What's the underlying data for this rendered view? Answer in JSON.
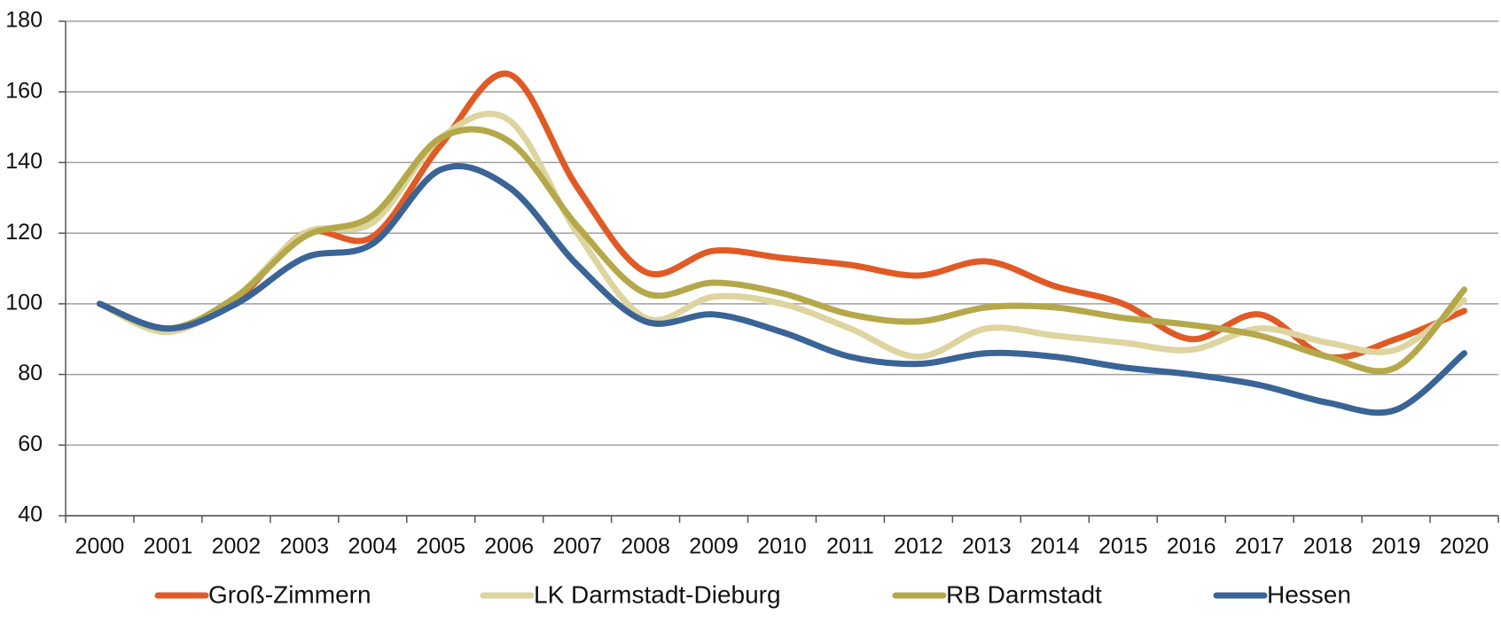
{
  "chart_data": {
    "type": "line",
    "categories": [
      "2000",
      "2001",
      "2002",
      "2003",
      "2004",
      "2005",
      "2006",
      "2007",
      "2008",
      "2009",
      "2010",
      "2011",
      "2012",
      "2013",
      "2014",
      "2015",
      "2016",
      "2017",
      "2018",
      "2019",
      "2020"
    ],
    "series": [
      {
        "name": "Groß-Zimmern",
        "color": "#e05a26",
        "values": [
          100,
          93,
          101,
          120,
          119,
          145,
          165,
          133,
          109,
          115,
          113,
          111,
          108,
          112,
          105,
          100,
          90,
          97,
          85,
          90,
          98
        ]
      },
      {
        "name": "LK Darmstadt-Dieburg",
        "color": "#ddd49f",
        "values": [
          100,
          92,
          102,
          120,
          123,
          147,
          152,
          120,
          96,
          102,
          100,
          93,
          85,
          93,
          91,
          89,
          87,
          93,
          89,
          87,
          101
        ]
      },
      {
        "name": "RB Darmstadt",
        "color": "#b5a84a",
        "values": [
          100,
          93,
          102,
          119,
          125,
          147,
          146,
          122,
          103,
          106,
          103,
          97,
          95,
          99,
          99,
          96,
          94,
          91,
          85,
          82,
          104
        ]
      },
      {
        "name": "Hessen",
        "color": "#3a6496",
        "values": [
          100,
          93,
          100,
          113,
          117,
          138,
          133,
          111,
          95,
          97,
          92,
          85,
          83,
          86,
          85,
          82,
          80,
          77,
          72,
          70,
          86
        ]
      }
    ],
    "ylim": [
      40,
      180
    ],
    "yticks": [
      40,
      60,
      80,
      100,
      120,
      140,
      160,
      180
    ],
    "grid": true
  }
}
